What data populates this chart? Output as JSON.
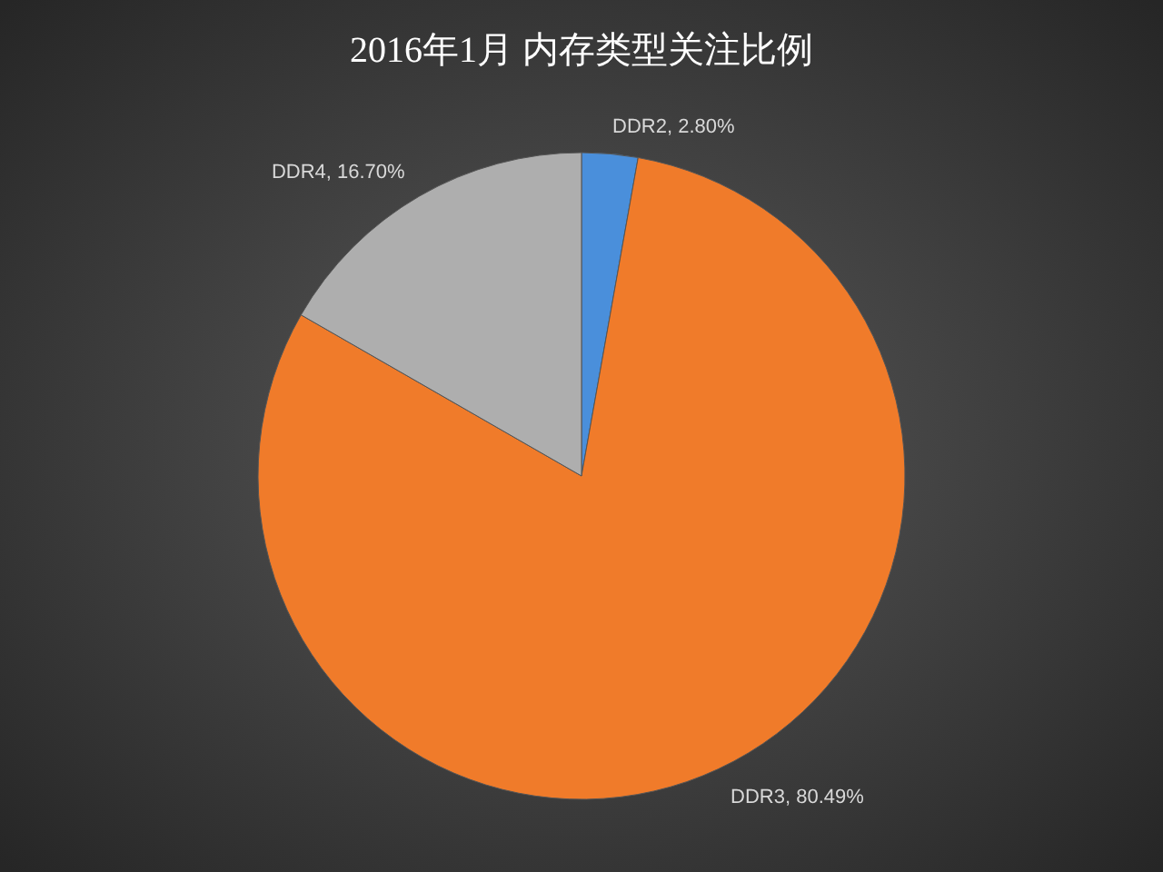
{
  "chart_data": {
    "type": "pie",
    "title": "2016年1月 内存类型关注比例",
    "categories": [
      "DDR2",
      "DDR3",
      "DDR4"
    ],
    "values": [
      2.8,
      80.49,
      16.7
    ],
    "value_labels": [
      "2.80%",
      "80.49%",
      "16.70%"
    ],
    "colors": [
      "#4a8fdb",
      "#f07b2a",
      "#aeaeae"
    ],
    "legend": false
  }
}
